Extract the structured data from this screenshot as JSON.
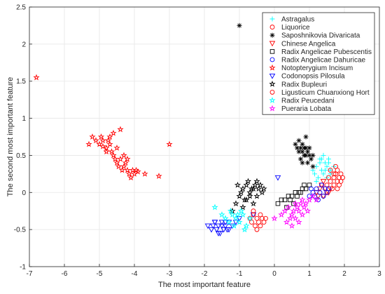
{
  "chart_data": {
    "type": "scatter",
    "title": "",
    "xlabel": "The most important feature",
    "ylabel": "The second most important feature",
    "xlim": [
      -7,
      3
    ],
    "ylim": [
      -1,
      2.5
    ],
    "xticks": [
      -7,
      -6,
      -5,
      -4,
      -3,
      -2,
      -1,
      0,
      1,
      2,
      3
    ],
    "yticks": [
      -1,
      -0.5,
      0,
      0.5,
      1,
      1.5,
      2,
      2.5
    ],
    "xtick_labels": [
      "-7",
      "-6",
      "-5",
      "-4",
      "-3",
      "-2",
      "-1",
      "0",
      "1",
      "2",
      "3"
    ],
    "ytick_labels": [
      "-1",
      "-0.5",
      "0",
      "0.5",
      "1",
      "1.5",
      "2",
      "2.5"
    ],
    "grid": true,
    "legend_position": "top-right",
    "series": [
      {
        "name": "Astragalus",
        "marker": "plus",
        "color": "#00ffff",
        "x": [
          1.1,
          1.2,
          1.3,
          1.35,
          1.4,
          1.45,
          1.5,
          1.55,
          1.6,
          1.25,
          1.3,
          1.4,
          1.5,
          1.6,
          1.7,
          1.2,
          1.15,
          1.35,
          1.45,
          1.55
        ],
        "y": [
          0.3,
          0.35,
          0.4,
          0.45,
          0.25,
          0.3,
          0.35,
          0.4,
          0.3,
          0.2,
          0.45,
          0.5,
          0.2,
          0.25,
          0.35,
          0.15,
          0.25,
          0.3,
          0.4,
          0.45
        ]
      },
      {
        "name": "Liquorice",
        "marker": "circle",
        "color": "#ff0000",
        "x": [
          1.5,
          1.6,
          1.7,
          1.75,
          1.8,
          1.85,
          1.9,
          1.65,
          1.7,
          1.8,
          1.9,
          1.55,
          1.6,
          1.75,
          1.85,
          1.95,
          1.7,
          1.8
        ],
        "y": [
          0.1,
          0.15,
          0.2,
          0.25,
          0.3,
          0.2,
          0.25,
          0.05,
          0.1,
          0.15,
          0.15,
          0.2,
          0.3,
          0.35,
          0.1,
          0.2,
          0.25,
          0.05
        ]
      },
      {
        "name": "Saposhnikovia Divaricata",
        "marker": "asterisk",
        "color": "#000000",
        "x": [
          -1.0,
          0.6,
          0.7,
          0.75,
          0.8,
          0.85,
          0.9,
          0.95,
          1.0,
          1.05,
          1.1,
          0.7,
          0.8,
          0.9,
          1.0,
          0.65,
          0.75,
          0.85,
          0.95,
          0.9,
          0.8,
          1.1
        ],
        "y": [
          2.25,
          0.65,
          0.7,
          0.6,
          0.55,
          0.6,
          0.5,
          0.55,
          0.5,
          0.45,
          0.5,
          0.55,
          0.65,
          0.6,
          0.6,
          0.6,
          0.45,
          0.5,
          0.4,
          0.75,
          0.4,
          0.35
        ]
      },
      {
        "name": "Chinese Angelica",
        "marker": "triangle-down",
        "color": "#ff0000",
        "x": [
          1.2,
          1.3,
          1.4,
          1.5,
          1.35,
          1.45,
          1.55,
          1.25,
          1.6,
          1.4
        ],
        "y": [
          0.0,
          0.05,
          -0.05,
          0.0,
          0.1,
          0.05,
          0.0,
          -0.05,
          0.05,
          0.15
        ]
      },
      {
        "name": "Radix Angelicae Pubescentis",
        "marker": "square",
        "color": "#000000",
        "x": [
          0.1,
          0.2,
          0.3,
          0.4,
          0.5,
          0.6,
          0.7,
          0.8,
          0.9,
          1.0,
          0.45,
          0.55,
          0.65,
          0.75,
          0.85,
          0.35
        ],
        "y": [
          -0.15,
          -0.1,
          -0.1,
          -0.05,
          -0.05,
          0.0,
          0.0,
          0.05,
          0.05,
          0.1,
          -0.1,
          -0.15,
          -0.05,
          0.0,
          0.1,
          -0.2
        ]
      },
      {
        "name": "Radix Angelicae Dahuricae",
        "marker": "circle",
        "color": "#0000ff",
        "x": [
          1.0,
          1.1,
          1.2,
          1.3,
          1.4,
          1.5,
          1.55,
          1.25,
          1.35,
          1.45,
          1.15,
          1.05
        ],
        "y": [
          -0.05,
          0.0,
          0.05,
          0.0,
          -0.05,
          0.0,
          0.05,
          -0.1,
          0.1,
          0.05,
          -0.05,
          0.05
        ]
      },
      {
        "name": "Notopterygium Incisum",
        "marker": "pentagram",
        "color": "#ff0000",
        "x": [
          -6.8,
          -5.3,
          -5.2,
          -5.1,
          -5.0,
          -4.95,
          -4.9,
          -4.8,
          -4.75,
          -4.7,
          -4.65,
          -4.6,
          -4.55,
          -4.5,
          -4.45,
          -4.4,
          -4.35,
          -4.3,
          -4.25,
          -4.2,
          -4.15,
          -4.1,
          -4.05,
          -4.0,
          -3.95,
          -3.9,
          -3.7,
          -3.3,
          -3.0,
          -4.6,
          -4.8,
          -4.4,
          -4.5,
          -4.3,
          -4.7,
          -4.2,
          -4.9
        ],
        "y": [
          1.55,
          0.65,
          0.75,
          0.7,
          0.65,
          0.75,
          0.7,
          0.6,
          0.7,
          0.75,
          0.55,
          0.5,
          0.45,
          0.4,
          0.35,
          0.45,
          0.3,
          0.35,
          0.4,
          0.3,
          0.25,
          0.2,
          0.3,
          0.25,
          0.3,
          0.28,
          0.25,
          0.22,
          0.65,
          0.8,
          0.55,
          0.85,
          0.6,
          0.5,
          0.65,
          0.45,
          0.62
        ]
      },
      {
        "name": "Codonopsis Pilosula",
        "marker": "triangle-down",
        "color": "#0000ff",
        "x": [
          -1.9,
          -1.8,
          -1.75,
          -1.7,
          -1.65,
          -1.6,
          -1.55,
          -1.5,
          -1.45,
          -1.4,
          -1.35,
          -1.3,
          -1.2,
          -1.1,
          -1.0,
          -1.6,
          -1.7,
          -1.5,
          -1.4,
          -1.3,
          0.1,
          -0.6
        ],
        "y": [
          -0.45,
          -0.5,
          -0.45,
          -0.4,
          -0.5,
          -0.45,
          -0.55,
          -0.4,
          -0.5,
          -0.45,
          -0.5,
          -0.4,
          -0.45,
          -0.4,
          -0.35,
          -0.55,
          -0.4,
          -0.45,
          -0.4,
          -0.5,
          0.2,
          -0.3
        ]
      },
      {
        "name": "Radix Bupleuri",
        "marker": "pentagram",
        "color": "#000000",
        "x": [
          -1.2,
          -1.1,
          -1.0,
          -0.95,
          -0.9,
          -0.85,
          -0.8,
          -0.75,
          -0.7,
          -0.65,
          -0.6,
          -0.55,
          -0.5,
          -0.45,
          -0.4,
          -0.35,
          -0.3,
          -0.9,
          -0.8,
          -0.7,
          -0.6,
          -1.05,
          -0.5
        ],
        "y": [
          -0.25,
          -0.15,
          -0.05,
          0.0,
          0.05,
          -0.1,
          0.1,
          0.15,
          0.0,
          0.05,
          -0.15,
          0.1,
          0.15,
          0.05,
          0.1,
          0.0,
          0.05,
          -0.2,
          -0.1,
          -0.05,
          0.05,
          0.1,
          -0.05
        ]
      },
      {
        "name": "Ligusticum Chuanxiong Hort",
        "marker": "circle",
        "color": "#ff0000",
        "x": [
          -0.7,
          -0.65,
          -0.6,
          -0.55,
          -0.5,
          -0.45,
          -0.4,
          -0.35,
          -0.3,
          -0.25,
          -0.6,
          -0.5,
          -0.4
        ],
        "y": [
          -0.35,
          -0.4,
          -0.3,
          -0.45,
          -0.35,
          -0.4,
          -0.3,
          -0.35,
          -0.4,
          -0.35,
          -0.25,
          -0.5,
          -0.45
        ]
      },
      {
        "name": "Radix Peucedani",
        "marker": "pentagram",
        "color": "#00ffff",
        "x": [
          -1.7,
          -1.5,
          -1.4,
          -1.3,
          -1.2,
          -1.1,
          -1.0,
          -0.9,
          -0.8,
          -0.7,
          -1.25,
          -1.15,
          -0.95,
          -0.85,
          -1.05
        ],
        "y": [
          -0.2,
          -0.3,
          -0.35,
          -0.4,
          -0.3,
          -0.35,
          -0.4,
          -0.3,
          -0.45,
          -0.35,
          -0.25,
          -0.45,
          -0.25,
          -0.5,
          -0.3
        ]
      },
      {
        "name": "Pueraria Lobata",
        "marker": "pentagram",
        "color": "#ff00ff",
        "x": [
          0.0,
          0.2,
          0.3,
          0.4,
          0.5,
          0.55,
          0.6,
          0.65,
          0.7,
          0.75,
          0.8,
          0.85,
          0.9,
          0.95,
          1.0,
          1.1,
          1.2,
          0.45,
          0.35,
          0.5,
          0.7,
          0.6,
          0.8
        ],
        "y": [
          -0.35,
          -0.3,
          -0.25,
          -0.2,
          -0.3,
          -0.25,
          -0.35,
          -0.2,
          -0.25,
          -0.15,
          -0.3,
          -0.2,
          -0.15,
          -0.25,
          -0.1,
          -0.05,
          -0.1,
          -0.35,
          -0.4,
          -0.45,
          -0.4,
          -0.15,
          -0.1
        ]
      }
    ]
  }
}
